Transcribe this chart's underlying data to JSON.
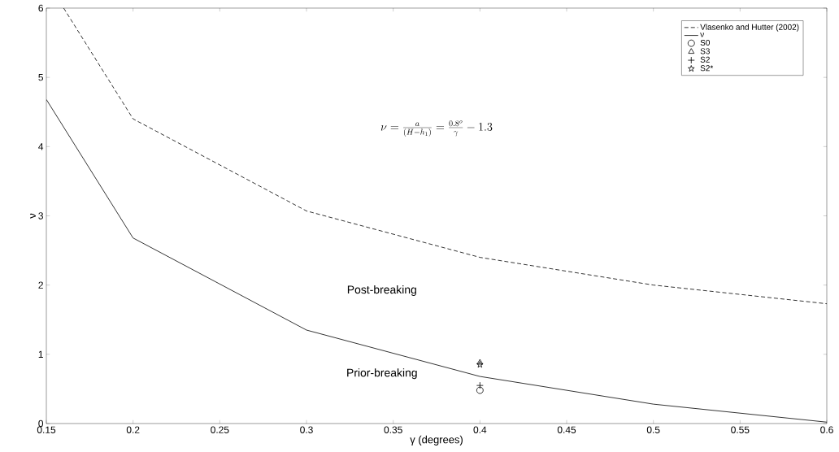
{
  "chart_data": {
    "type": "line",
    "xlabel": "γ (degrees)",
    "ylabel": "ν",
    "xlim": [
      0.15,
      0.6
    ],
    "ylim": [
      0,
      6
    ],
    "xticks": [
      0.15,
      0.2,
      0.25,
      0.3,
      0.35,
      0.4,
      0.45,
      0.5,
      0.55,
      0.6
    ],
    "yticks": [
      0,
      1,
      2,
      3,
      4,
      5,
      6
    ],
    "legend": "top right",
    "grid": false,
    "series": [
      {
        "name": "Vlasenko and Hutter (2002)",
        "color": "#000000",
        "line_style": "dashed",
        "marker": "none",
        "x": [
          0.16,
          0.2,
          0.3,
          0.4,
          0.5,
          0.6
        ],
        "values": [
          6,
          4.4,
          3.07,
          2.4,
          2.0,
          1.73
        ]
      },
      {
        "name": "ν",
        "color": "#000000",
        "line_style": "solid",
        "marker": "none",
        "x": [
          0.15,
          0.2,
          0.3,
          0.4,
          0.5,
          0.6
        ],
        "values": [
          4.68,
          2.68,
          1.35,
          0.68,
          0.28,
          0.02
        ]
      },
      {
        "name": "S0",
        "color": "#000000",
        "type": "scatter",
        "marker": "circle",
        "x": [
          0.4
        ],
        "values": [
          0.48
        ]
      },
      {
        "name": "S3",
        "color": "#000000",
        "type": "scatter",
        "marker": "triangle",
        "x": [
          0.4
        ],
        "values": [
          0.88
        ]
      },
      {
        "name": "S2",
        "color": "#000000",
        "type": "scatter",
        "marker": "cross",
        "x": [
          0.4
        ],
        "values": [
          0.55
        ]
      },
      {
        "name": "S2*",
        "color": "#000000",
        "type": "scatter",
        "marker": "star",
        "x": [
          0.4
        ],
        "values": [
          0.85
        ]
      }
    ],
    "annotations": [
      "\\nu=\\frac{a}{(H-h_1)}=\\frac{0.8^o}{\\gamma}-1.3",
      "Post-breaking",
      "Prior-breaking"
    ]
  }
}
